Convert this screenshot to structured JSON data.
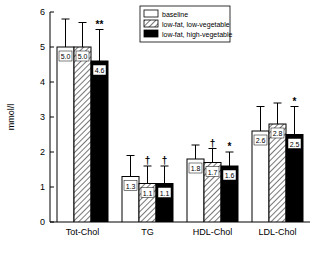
{
  "chart_data": {
    "type": "bar",
    "y_label": "mmol/l",
    "categories": [
      "Tot-Chol",
      "TG",
      "HDL-Chol",
      "LDL-Chol"
    ],
    "series": [
      {
        "name": "baseline",
        "color": "#ffffff",
        "values": [
          5.0,
          1.3,
          1.8,
          2.6
        ],
        "value_labels": [
          "5.0",
          "1.3",
          "1.8",
          "2.6"
        ],
        "errors": [
          0.8,
          0.6,
          0.4,
          0.7
        ]
      },
      {
        "name": "low-fat, low-vegetable",
        "color": "#555555",
        "values": [
          5.0,
          1.1,
          1.7,
          2.8
        ],
        "value_labels": [
          "5.0",
          "1.1",
          "1.7",
          "2.8"
        ],
        "errors": [
          0.7,
          0.5,
          0.4,
          0.6
        ]
      },
      {
        "name": "low-fat, high-vegetable",
        "color": "#000000",
        "values": [
          4.6,
          1.1,
          1.6,
          2.5
        ],
        "value_labels": [
          "4.6",
          "1.1",
          "1.6",
          "2.5"
        ],
        "errors": [
          0.9,
          0.5,
          0.4,
          0.8
        ]
      }
    ],
    "annotations": [
      {
        "text": "**",
        "series": 2,
        "category": 0
      },
      {
        "text": "†",
        "series": 1,
        "category": 1
      },
      {
        "text": "†",
        "series": 2,
        "category": 1
      },
      {
        "text": "†",
        "series": 1,
        "category": 2
      },
      {
        "text": "*",
        "series": 2,
        "category": 2
      },
      {
        "text": "*",
        "series": 2,
        "category": 3
      }
    ],
    "ylim": [
      0,
      6
    ],
    "yticks": [
      0,
      1,
      2,
      3,
      4,
      5,
      6
    ],
    "data_labels": true,
    "legend": "top"
  }
}
